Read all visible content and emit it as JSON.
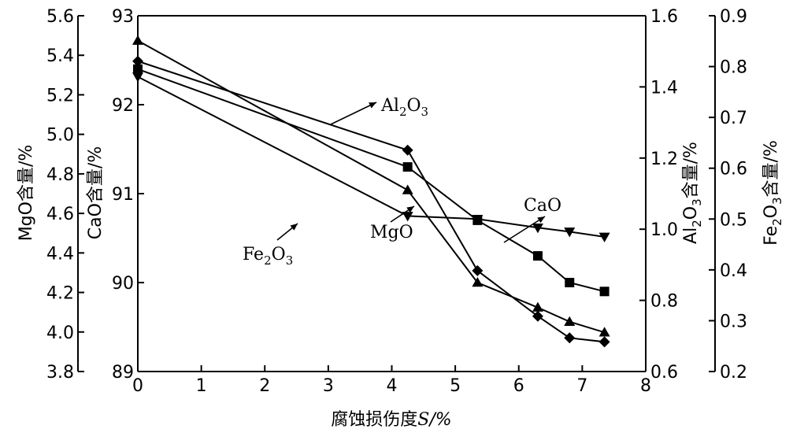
{
  "chart_data": {
    "type": "line",
    "xlabel_main": "腐蚀损伤度",
    "xlabel_sym": "S",
    "xlabel_unit": "/%",
    "x_ticks": [
      "0",
      "1",
      "2",
      "3",
      "4",
      "5",
      "6",
      "7",
      "8"
    ],
    "xlim": [
      0,
      8
    ],
    "axes": {
      "mgo": {
        "label_chem": "MgO",
        "label_text": "含量/%",
        "lim": [
          3.8,
          5.6
        ],
        "ticks": [
          "3.8",
          "4.0",
          "4.2",
          "4.4",
          "4.6",
          "4.8",
          "5.0",
          "5.2",
          "5.4",
          "5.6"
        ]
      },
      "cao": {
        "label_chem": "CaO",
        "label_text": "含量/%",
        "lim": [
          89,
          93
        ],
        "ticks": [
          "89",
          "90",
          "91",
          "92",
          "93"
        ]
      },
      "al2o3": {
        "label_pre": "Al",
        "label_sub1": "2",
        "label_mid": "O",
        "label_sub2": "3",
        "label_text": "含量/%",
        "lim": [
          0.6,
          1.6
        ],
        "ticks": [
          "0.6",
          "0.8",
          "1.0",
          "1.2",
          "1.4",
          "1.6"
        ]
      },
      "fe2o3": {
        "label_pre": "Fe",
        "label_sub1": "2",
        "label_mid": "O",
        "label_sub2": "3",
        "label_text": "含量/%",
        "lim": [
          0.2,
          0.9
        ],
        "ticks": [
          "0.2",
          "0.3",
          "0.4",
          "0.5",
          "0.6",
          "0.7",
          "0.8",
          "0.9"
        ]
      }
    },
    "series": [
      {
        "name": "MgO",
        "axis": "mgo",
        "marker": "diamond",
        "x": [
          0,
          4.25,
          5.35,
          6.3,
          6.8,
          7.35
        ],
        "y": [
          5.37,
          4.92,
          4.31,
          4.08,
          3.97,
          3.95
        ]
      },
      {
        "name": "CaO",
        "axis": "cao",
        "marker": "square",
        "x": [
          0,
          4.25,
          5.35,
          6.3,
          6.8,
          7.35
        ],
        "y": [
          92.4,
          91.3,
          90.7,
          90.3,
          90.0,
          89.9
        ]
      },
      {
        "name": "Al2O3",
        "axis": "al2o3",
        "marker": "triangle-up",
        "x": [
          0,
          4.25,
          5.35,
          6.3,
          6.8,
          7.35
        ],
        "y": [
          1.53,
          1.11,
          0.85,
          0.78,
          0.74,
          0.71
        ]
      },
      {
        "name": "Fe2O3",
        "axis": "fe2o3",
        "marker": "triangle-down",
        "x": [
          0,
          4.25,
          5.35,
          6.3,
          6.8,
          7.35
        ],
        "y": [
          0.78,
          0.506,
          0.5,
          0.483,
          0.475,
          0.465
        ]
      }
    ],
    "annotations": {
      "al2o3": {
        "pre": "Al",
        "sub1": "2",
        "mid": "O",
        "sub2": "3"
      },
      "cao": {
        "text": "CaO"
      },
      "mgo": {
        "text": "MgO"
      },
      "fe2o3": {
        "pre": "Fe",
        "sub1": "2",
        "mid": "O",
        "sub2": "3"
      }
    }
  }
}
